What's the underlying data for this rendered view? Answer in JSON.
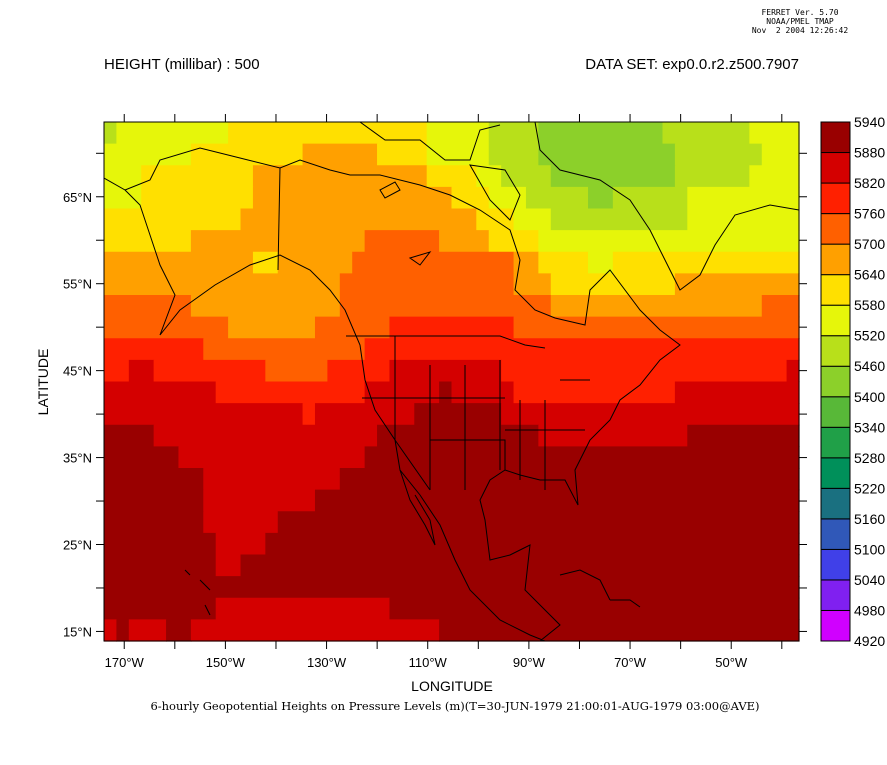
{
  "stamp": {
    "line1": "FERRET Ver. 5.70",
    "line2": "NOAA/PMEL TMAP",
    "line3": "Nov  2 2004 12:26:42"
  },
  "title_left": "HEIGHT (millibar) : 500",
  "title_right": "DATA SET: exp0.0.r2.z500.7907",
  "caption": "6-hourly Geopotential Heights on Pressure Levels (m)(T=30-JUN-1979 21:00:01-AUG-1979 03:00@AVE)",
  "chart_data": {
    "type": "heatmap",
    "title": "HEIGHT (millibar) : 500",
    "xlabel": "LONGITUDE",
    "ylabel": "LATITUDE",
    "xlim": [
      -174,
      -36.6
    ],
    "ylim": [
      13.9,
      73.6
    ],
    "x_ticks": [
      {
        "value": -170,
        "label": "170°W"
      },
      {
        "value": -150,
        "label": "150°W"
      },
      {
        "value": -130,
        "label": "130°W"
      },
      {
        "value": -110,
        "label": "110°W"
      },
      {
        "value": -90,
        "label": "90°W"
      },
      {
        "value": -70,
        "label": "70°W"
      },
      {
        "value": -50,
        "label": "50°W"
      }
    ],
    "y_ticks": [
      {
        "value": 65,
        "label": "65°N"
      },
      {
        "value": 55,
        "label": "55°N"
      },
      {
        "value": 45,
        "label": "45°N"
      },
      {
        "value": 35,
        "label": "35°N"
      },
      {
        "value": 25,
        "label": "25°N"
      },
      {
        "value": 15,
        "label": "15°N"
      }
    ],
    "colorbar": {
      "levels": [
        "4920",
        "4980",
        "5040",
        "5100",
        "5160",
        "5220",
        "5280",
        "5340",
        "5400",
        "5460",
        "5520",
        "5580",
        "5640",
        "5700",
        "5760",
        "5820",
        "5880",
        "5940"
      ],
      "colors": [
        "#d000ff",
        "#8020f0",
        "#4040e8",
        "#3058b8",
        "#1a7080",
        "#00905a",
        "#20a048",
        "#58b838",
        "#8cd02a",
        "#b8e01a",
        "#e6f60a",
        "#ffe000",
        "#ffa000",
        "#ff6000",
        "#ff2000",
        "#d40000",
        "#990000"
      ]
    },
    "code_values": {
      "a": 5910,
      "b": 5850,
      "c": 5790,
      "d": 5730,
      "e": 5670,
      "f": 5610,
      "g": 5550,
      "h": 5490,
      "i": 5430
    },
    "grid_columns": 56,
    "grid_rows_runs": [
      "h1 g9 f16 g5 h4 i10 h7 g4",
      "g7 f9 e6 f4 g5 h4 i11 h7 g3",
      "g3 f9 e14 f4 g2 h4 i10 h6 g4",
      "g3 f9 e16 f3 g3 h5 i2 h6 g9",
      "f11 e19 f3 g3 h11 g9",
      "f7 e14 d6 e4 f4 g21",
      "e12 f2 e6 d13 e2 f4 g2 f15",
      "e19 d14 e3 f10 e10",
      "d7 e12 d17 e17 d3",
      "d10 e7 d6 c10 d23",
      "c8 d13 c35",
      "c2 b2 c9 d5 c5 b9 c23 b1",
      "b9 c12 b6 a1 b5 c13 b10",
      "b16 c1 b8 a7 b24",
      "a4 b18 a13 b12 a9",
      "a6 b15 a35",
      "a8 b11 a37",
      "a8 b9 a39",
      "a8 b6 a42",
      "a9 b4 a43",
      "a9 b2 a45",
      "a56",
      "a9 b14 a33",
      "b1 a1 b3 a2 b20 a29"
    ]
  }
}
